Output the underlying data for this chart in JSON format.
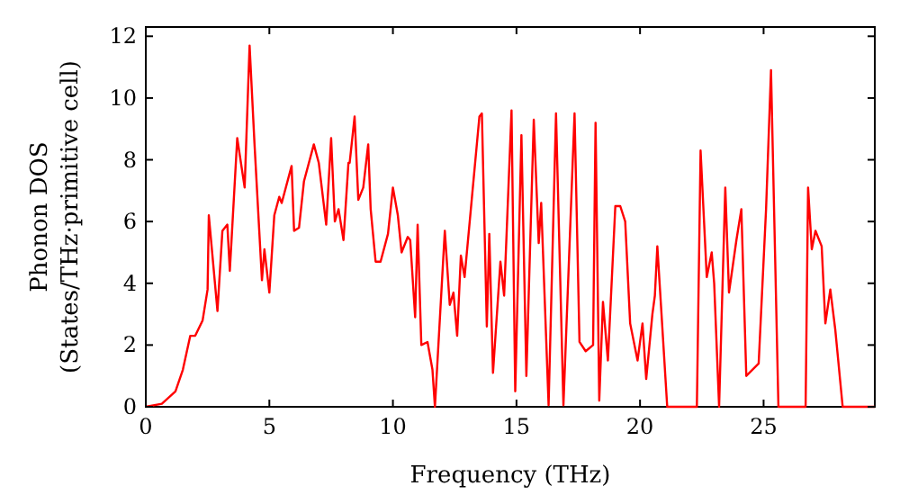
{
  "chart_data": {
    "type": "line",
    "xlabel": "Frequency (THz)",
    "ylabel": "Phonon DOS\n(States/THz·primitive cell)",
    "xlim": [
      0,
      29.5
    ],
    "ylim": [
      0,
      12.3
    ],
    "xticks": [
      0,
      5,
      10,
      15,
      20,
      25
    ],
    "yticks": [
      0,
      2,
      4,
      6,
      8,
      10,
      12
    ],
    "grid": false,
    "marker": "none",
    "line_style": "solid",
    "series": [
      {
        "color": "#ff0000",
        "x": [
          0,
          0.65,
          1.2,
          1.5,
          1.8,
          2.0,
          2.3,
          2.5,
          2.55,
          2.9,
          3.1,
          3.3,
          3.4,
          3.7,
          4.0,
          4.2,
          4.4,
          4.7,
          4.8,
          5.0,
          5.2,
          5.4,
          5.5,
          5.9,
          6.0,
          6.2,
          6.4,
          6.8,
          7.0,
          7.3,
          7.5,
          7.65,
          7.8,
          8.0,
          8.2,
          8.25,
          8.45,
          8.6,
          8.8,
          9.0,
          9.1,
          9.3,
          9.5,
          9.8,
          10.0,
          10.2,
          10.35,
          10.6,
          10.7,
          10.9,
          11.0,
          11.15,
          11.4,
          11.6,
          11.7,
          12.1,
          12.3,
          12.45,
          12.6,
          12.75,
          12.9,
          13.2,
          13.5,
          13.6,
          13.8,
          13.9,
          14.05,
          14.35,
          14.5,
          14.8,
          14.95,
          15.2,
          15.4,
          15.7,
          15.9,
          16.0,
          16.3,
          16.6,
          16.9,
          17.35,
          17.55,
          17.8,
          18.1,
          18.2,
          18.35,
          18.5,
          18.7,
          19.0,
          19.2,
          19.4,
          19.6,
          19.9,
          20.1,
          20.25,
          20.5,
          20.6,
          20.7,
          21.1,
          22.3,
          22.45,
          22.7,
          22.9,
          23.0,
          23.2,
          23.45,
          23.6,
          23.9,
          24.1,
          24.3,
          24.8,
          25.1,
          25.3,
          25.6,
          26.7,
          26.8,
          26.95,
          27.1,
          27.35,
          27.5,
          27.7,
          27.9,
          28.2,
          29.5
        ],
        "values": [
          0,
          0.1,
          0.5,
          1.2,
          2.3,
          2.3,
          2.8,
          3.8,
          6.2,
          3.1,
          5.7,
          5.9,
          4.4,
          8.7,
          7.1,
          11.7,
          8.5,
          4.1,
          5.1,
          3.7,
          6.2,
          6.8,
          6.6,
          7.8,
          5.7,
          5.8,
          7.3,
          8.5,
          7.9,
          5.9,
          8.7,
          6.0,
          6.4,
          5.4,
          7.9,
          7.9,
          9.4,
          6.7,
          7.1,
          8.5,
          6.4,
          4.7,
          4.7,
          5.6,
          7.1,
          6.2,
          5.0,
          5.5,
          5.4,
          2.9,
          5.9,
          2.0,
          2.1,
          1.2,
          0,
          5.7,
          3.3,
          3.7,
          2.3,
          4.9,
          4.2,
          6.8,
          9.4,
          9.5,
          2.6,
          5.6,
          1.1,
          4.7,
          3.6,
          9.6,
          0.5,
          8.8,
          1.0,
          9.3,
          5.3,
          6.6,
          0.05,
          9.5,
          0.05,
          9.5,
          2.1,
          1.8,
          2.0,
          9.2,
          0.2,
          3.4,
          1.5,
          6.5,
          6.5,
          6.0,
          2.7,
          1.5,
          2.7,
          0.9,
          3.0,
          3.6,
          5.2,
          0,
          0,
          8.3,
          4.2,
          5.0,
          4.0,
          0,
          7.1,
          3.7,
          5.4,
          6.4,
          1.0,
          1.4,
          6.4,
          10.9,
          0,
          0,
          7.1,
          5.1,
          5.7,
          5.2,
          2.7,
          3.8,
          2.5,
          0,
          0
        ]
      }
    ]
  }
}
